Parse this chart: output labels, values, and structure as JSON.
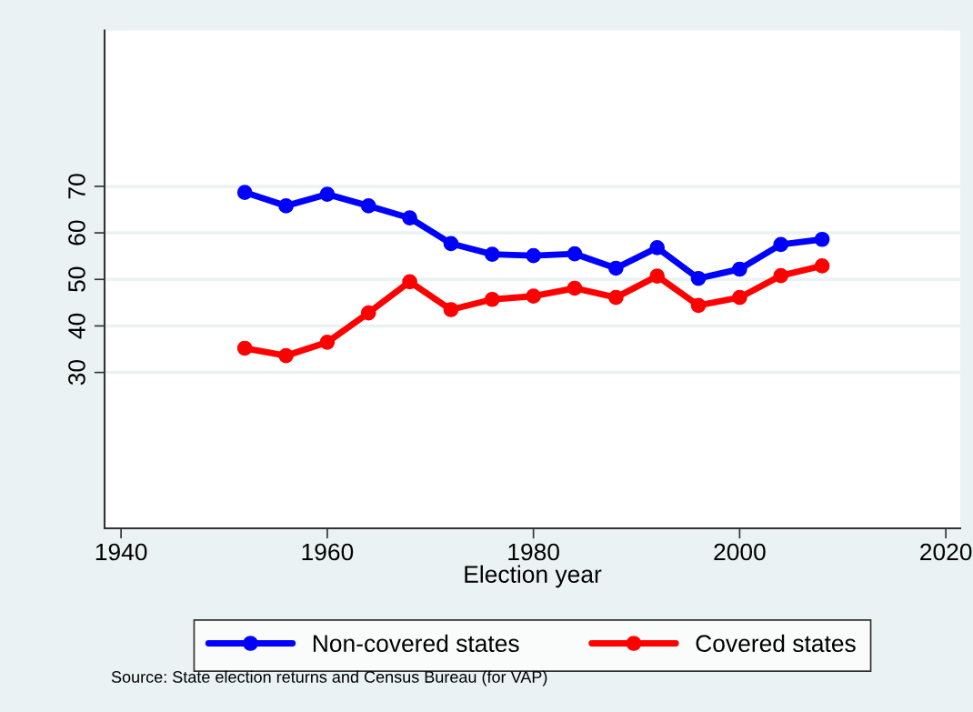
{
  "chart_data": {
    "type": "line",
    "xlabel": "Election year",
    "annotations": [
      "Source: State election returns and Census Bureau (for VAP)"
    ],
    "x": [
      1952,
      1956,
      1960,
      1964,
      1968,
      1972,
      1976,
      1980,
      1984,
      1988,
      1992,
      1996,
      2000,
      2004,
      2008
    ],
    "series": [
      {
        "name": "Non-covered states",
        "color": "#0000ff",
        "values": [
          68.7,
          65.8,
          68.3,
          65.8,
          63.2,
          57.7,
          55.4,
          55.1,
          55.5,
          52.4,
          56.8,
          50.2,
          52.2,
          57.5,
          58.6
        ]
      },
      {
        "name": "Covered states",
        "color": "#ff0000",
        "values": [
          35.2,
          33.6,
          36.5,
          42.8,
          49.5,
          43.5,
          45.7,
          46.4,
          48.1,
          46.1,
          50.7,
          44.4,
          46.1,
          50.8,
          52.9
        ]
      }
    ],
    "xlim": [
      1938.4,
      2021.4
    ],
    "xticks": [
      1940,
      1960,
      1980,
      2000,
      2020
    ],
    "ylim": [
      -3.5,
      103.5
    ],
    "yticks": [
      30,
      40,
      50,
      60,
      70
    ],
    "grid": "y",
    "legend": "bottom",
    "marker": "circle",
    "line_style": "solid"
  }
}
